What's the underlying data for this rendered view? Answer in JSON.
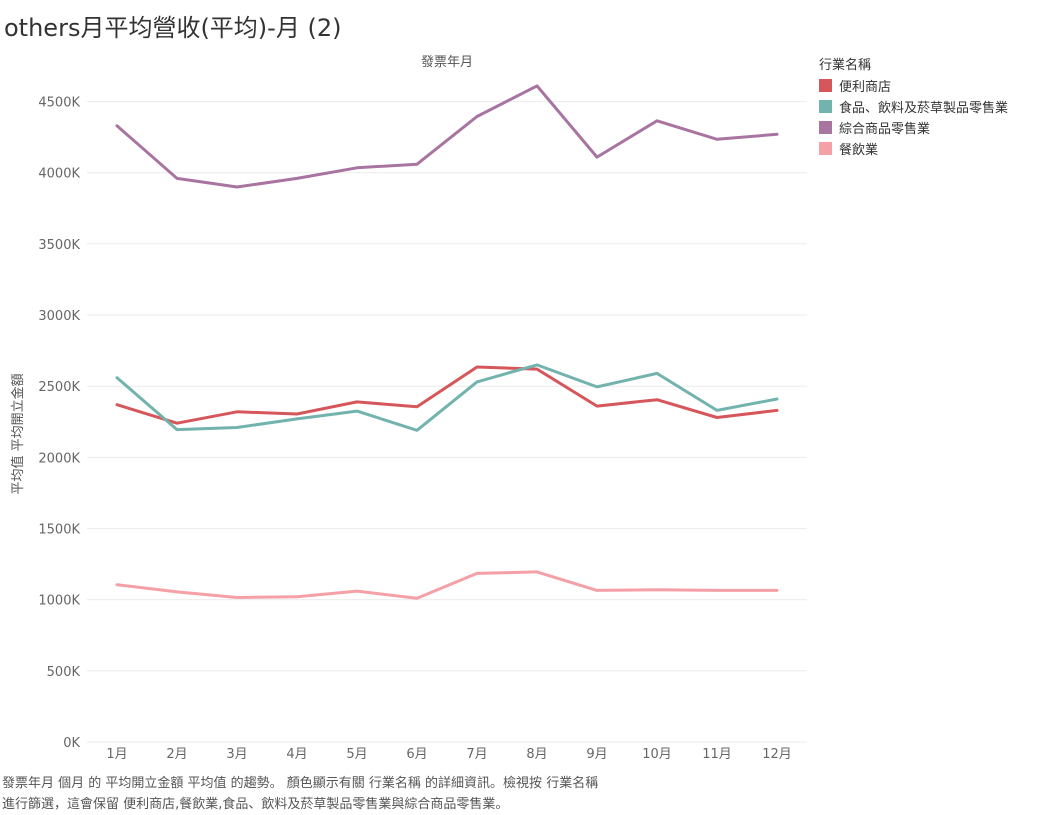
{
  "title": "others月平均營收(平均)-月 (2)",
  "legend": {
    "title": "行業名稱"
  },
  "caption": {
    "line1": "發票年月 個月 的 平均開立金額 平均值 的趨勢。 顏色顯示有關 行業名稱 的詳細資訊。檢視按 行業名稱",
    "line2": "進行篩選，這會保留 便利商店,餐飲業,食品、飲料及菸草製品零售業與綜合商品零售業。"
  },
  "chart_data": {
    "type": "line",
    "title": "others月平均營收(平均)-月 (2)",
    "xlabel": "發票年月",
    "ylabel": "平均值 平均開立金額",
    "categories": [
      "1月",
      "2月",
      "3月",
      "4月",
      "5月",
      "6月",
      "7月",
      "8月",
      "9月",
      "10月",
      "11月",
      "12月"
    ],
    "ylim": [
      0,
      4750000
    ],
    "yticks": [
      0,
      500000,
      1000000,
      1500000,
      2000000,
      2500000,
      3000000,
      3500000,
      4000000,
      4500000
    ],
    "ytick_labels": [
      "0K",
      "500K",
      "1000K",
      "1500K",
      "2000K",
      "2500K",
      "3000K",
      "3500K",
      "4000K",
      "4500K"
    ],
    "grid": "horizontal",
    "legend_position": "right",
    "series": [
      {
        "name": "便利商店",
        "color": "#d6575b",
        "values": [
          2370000,
          2240000,
          2320000,
          2305000,
          2390000,
          2355000,
          2635000,
          2620000,
          2360000,
          2405000,
          2280000,
          2330000
        ]
      },
      {
        "name": "食品、飲料及菸草製品零售業",
        "color": "#73b3ae",
        "values": [
          2560000,
          2195000,
          2210000,
          2270000,
          2325000,
          2190000,
          2530000,
          2650000,
          2495000,
          2590000,
          2330000,
          2410000
        ]
      },
      {
        "name": "綜合商品零售業",
        "color": "#a874a0",
        "values": [
          4330000,
          3960000,
          3900000,
          3960000,
          4035000,
          4060000,
          4395000,
          4610000,
          4110000,
          4365000,
          4235000,
          4270000
        ]
      },
      {
        "name": "餐飲業",
        "color": "#f4a0a6",
        "values": [
          1105000,
          1055000,
          1015000,
          1020000,
          1060000,
          1010000,
          1185000,
          1195000,
          1065000,
          1070000,
          1065000,
          1065000
        ]
      }
    ]
  }
}
